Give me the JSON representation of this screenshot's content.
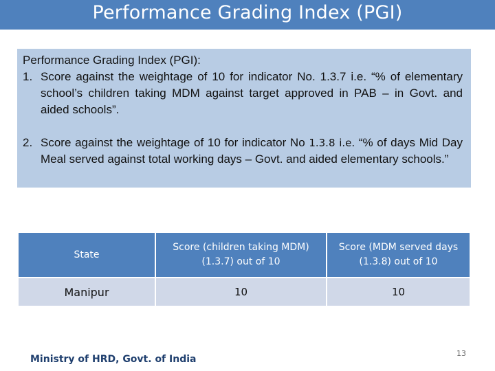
{
  "slide": {
    "title": "Performance Grading Index (PGI)",
    "footer": "Ministry of HRD, Govt. of India",
    "page_number": "13"
  },
  "info": {
    "heading": "Performance Grading Index (PGI):",
    "items": [
      {
        "number": "1.",
        "text": "Score against the weightage of 10 for indicator No. 1.3.7 i.e. “% of elementary school’s children taking MDM against target approved in PAB – in Govt. and aided schools”."
      },
      {
        "number": "2.",
        "text_before": "Score against the weightage of 10 for indicator No ",
        "indicator": "1.3.8 i.e.",
        "text_after": " “% of days Mid Day Meal served against total working days – Govt. and aided elementary schools.”"
      }
    ]
  },
  "table": {
    "headers": [
      "State",
      "Score (children taking MDM) (1.3.7) out of 10",
      "Score (MDM served days (1.3.8) out of 10"
    ],
    "rows": [
      [
        "Manipur",
        "10",
        "10"
      ]
    ]
  },
  "colors": {
    "title_bar": "#4f81bd",
    "info_box": "#b8cce4",
    "table_header": "#4f81bd",
    "table_cell": "#d0d8e8",
    "footer_text": "#1f3f6e"
  }
}
